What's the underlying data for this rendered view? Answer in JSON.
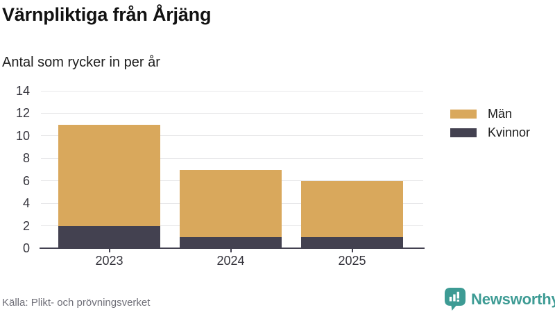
{
  "header": {
    "title": "Värnpliktiga från Årjäng",
    "subtitle": "Antal som rycker in per år"
  },
  "chart_data": {
    "type": "bar",
    "stacked": true,
    "categories": [
      "2023",
      "2024",
      "2025"
    ],
    "series": [
      {
        "name": "Män",
        "color": "#d9a85c",
        "values": [
          9,
          6,
          5
        ]
      },
      {
        "name": "Kvinnor",
        "color": "#434150",
        "values": [
          2,
          1,
          1
        ]
      }
    ],
    "totals": [
      11,
      7,
      6
    ],
    "title": "Värnpliktiga från Årjäng",
    "subtitle": "Antal som rycker in per år",
    "xlabel": "",
    "ylabel": "",
    "ylim": [
      0,
      14
    ],
    "yticks": [
      0,
      2,
      4,
      6,
      8,
      10,
      12,
      14
    ],
    "grid": true,
    "legend_position": "right"
  },
  "footer": {
    "source": "Källa: Plikt- och prövningsverket",
    "brand": "Newsworthy"
  },
  "colors": {
    "men": "#d9a85c",
    "women": "#434150",
    "axis": "#434150",
    "grid": "#e8e8ea",
    "tick_text": "#35343c",
    "brand_teal": "#3d9b94",
    "background": "#ffffff"
  }
}
